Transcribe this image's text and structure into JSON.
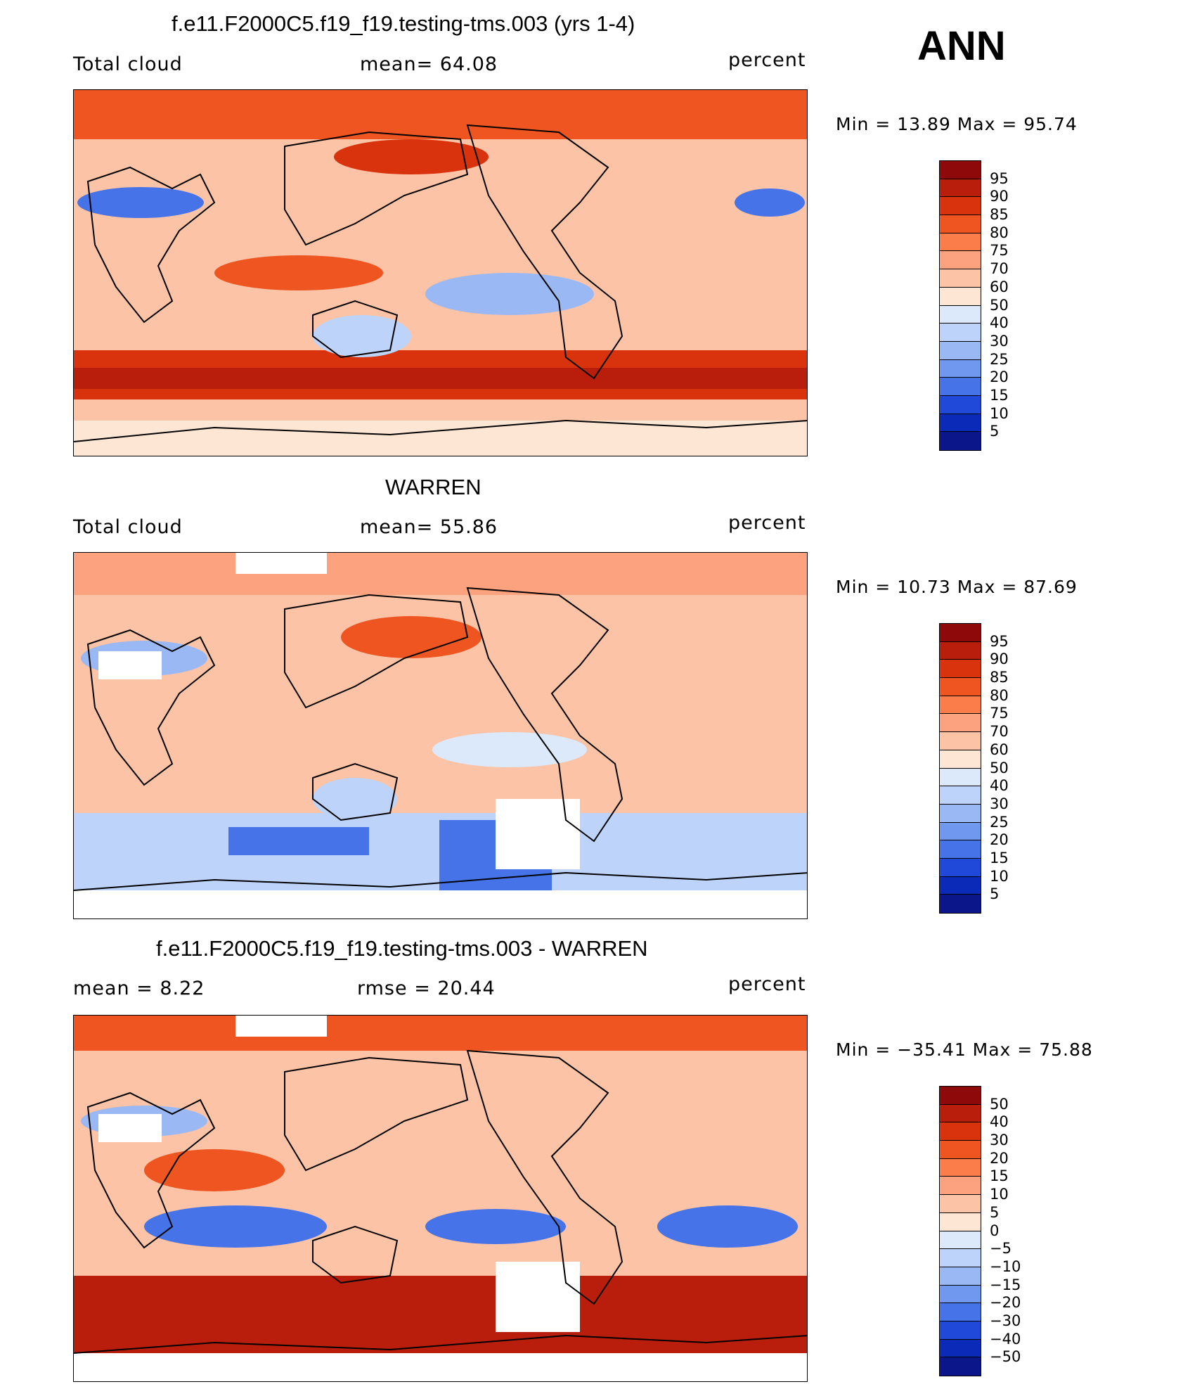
{
  "season": "ANN",
  "panels": [
    {
      "id": "test",
      "title": "f.e11.F2000C5.f19_f19.testing-tms.003 (yrs 1-4)",
      "left_label": "Total cloud",
      "center_label": "mean=   64.08",
      "right_label": "percent",
      "minmax": "Min =   13.89 Max =   95.74",
      "levels": [
        "95",
        "90",
        "85",
        "80",
        "75",
        "70",
        "60",
        "50",
        "40",
        "30",
        "25",
        "20",
        "15",
        "10",
        "5"
      ],
      "colors": [
        "#8e0a0a",
        "#b81e0b",
        "#d8330d",
        "#ee5521",
        "#fa7d4a",
        "#fca27e",
        "#fcc3a6",
        "#fee6d4",
        "#dce9fb",
        "#bdd3f9",
        "#99b8f4",
        "#7198ef",
        "#4773e8",
        "#2149d9",
        "#0b2ab8",
        "#0a1689"
      ]
    },
    {
      "id": "obs",
      "title": "WARREN",
      "left_label": "Total cloud",
      "center_label": "mean=   55.86",
      "right_label": "percent",
      "minmax": "Min =   10.73 Max =   87.69",
      "levels": [
        "95",
        "90",
        "85",
        "80",
        "75",
        "70",
        "60",
        "50",
        "40",
        "30",
        "25",
        "20",
        "15",
        "10",
        "5"
      ],
      "colors": [
        "#8e0a0a",
        "#b81e0b",
        "#d8330d",
        "#ee5521",
        "#fa7d4a",
        "#fca27e",
        "#fcc3a6",
        "#fee6d4",
        "#dce9fb",
        "#bdd3f9",
        "#99b8f4",
        "#7198ef",
        "#4773e8",
        "#2149d9",
        "#0b2ab8",
        "#0a1689"
      ]
    },
    {
      "id": "diff",
      "title": "f.e11.F2000C5.f19_f19.testing-tms.003 - WARREN",
      "left_label": "mean =     8.22",
      "center_label": "rmse =   20.44",
      "right_label": "percent",
      "minmax": "Min = −35.41 Max =   75.88",
      "levels": [
        "50",
        "40",
        "30",
        "20",
        "15",
        "10",
        "5",
        "0",
        "−5",
        "−10",
        "−15",
        "−20",
        "−30",
        "−40",
        "−50"
      ],
      "colors": [
        "#8e0a0a",
        "#b81e0b",
        "#d8330d",
        "#ee5521",
        "#fa7d4a",
        "#fca27e",
        "#fcc3a6",
        "#fee6d4",
        "#dce9fb",
        "#bdd3f9",
        "#99b8f4",
        "#7198ef",
        "#4773e8",
        "#2149d9",
        "#0b2ab8",
        "#0a1689"
      ]
    }
  ]
}
